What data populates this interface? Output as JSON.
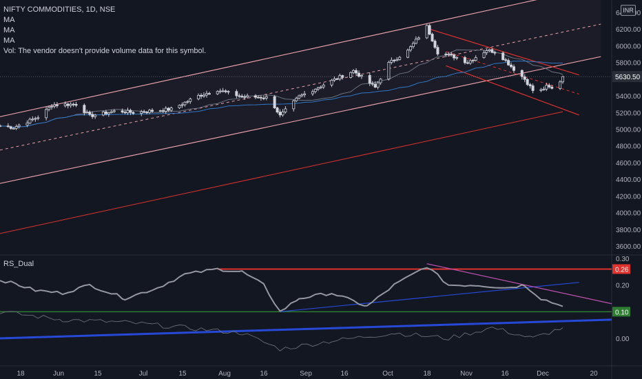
{
  "header": {
    "symbol": "NIFTY COMMODITIES, 1D, NSE",
    "indicators": [
      "MA",
      "MA",
      "MA"
    ],
    "volume_note": "Vol: The vendor doesn't provide volume data for this symbol.",
    "currency": "INR"
  },
  "rs_panel": {
    "title": "RS_Dual"
  },
  "colors": {
    "background": "#131722",
    "up": "#d1d4dc",
    "down": "#d1d4dc",
    "channel": "#e8a0a8",
    "red_line": "#e0322e",
    "ma_blue": "#2f78c8",
    "ma_gray": "#6b7280",
    "rs_line": "#9598a1",
    "rs_blue": "#2749d8",
    "rs_red_level": "#e0322e",
    "rs_green_level": "#2e7d32",
    "price_tag": "#2a2e39",
    "rs_tag_red": "#e0322e",
    "rs_tag_green": "#2e7d32"
  },
  "chart_data": [
    {
      "type": "candlestick",
      "title": "NIFTY COMMODITIES, 1D, NSE",
      "x_ticks": [
        "18",
        "Jun",
        "15",
        "Jul",
        "15",
        "Aug",
        "16",
        "Sep",
        "16",
        "Oct",
        "18",
        "Nov",
        "16",
        "Dec",
        "20"
      ],
      "y_ticks": [
        3600,
        3800,
        4000,
        4200,
        4400,
        4600,
        4800,
        5000,
        5200,
        5400,
        5600,
        5800,
        6000,
        6200,
        6400
      ],
      "y_tick_labels": [
        "3600.00",
        "3800.00",
        "4000.00",
        "4200.00",
        "4400.00",
        "4600.00",
        "4800.00",
        "5000.00",
        "5200.00",
        "5400.00",
        "5600.00",
        "5800.00",
        "6000.00",
        "6200.00",
        "6400.00"
      ],
      "ylim": [
        3500,
        6700
      ],
      "last_price": 5630.5,
      "last_price_label": "5630.50",
      "ohlc_anchors": [
        {
          "date": "May 13",
          "close": 5040
        },
        {
          "date": "May 18",
          "close": 5020
        },
        {
          "date": "May 28",
          "close": 5160
        },
        {
          "date": "Jun 01",
          "close": 5290
        },
        {
          "date": "Jun 10",
          "close": 5300
        },
        {
          "date": "Jun 15",
          "close": 5160
        },
        {
          "date": "Jun 25",
          "close": 5220
        },
        {
          "date": "Jul 01",
          "close": 5200
        },
        {
          "date": "Jul 15",
          "close": 5240
        },
        {
          "date": "Jul 25",
          "close": 5400
        },
        {
          "date": "Aug 01",
          "close": 5470
        },
        {
          "date": "Aug 10",
          "close": 5390
        },
        {
          "date": "Aug 20",
          "close": 5380
        },
        {
          "date": "Aug 24",
          "close": 5160
        },
        {
          "date": "Aug 31",
          "close": 5390
        },
        {
          "date": "Sep 10",
          "close": 5550
        },
        {
          "date": "Sep 20",
          "close": 5700
        },
        {
          "date": "Sep 28",
          "close": 5500
        },
        {
          "date": "Oct 03",
          "close": 5790
        },
        {
          "date": "Oct 10",
          "close": 5940
        },
        {
          "date": "Oct 17",
          "close": 6230
        },
        {
          "date": "Oct 21",
          "close": 5920
        },
        {
          "date": "Oct 28",
          "close": 5860
        },
        {
          "date": "Nov 01",
          "close": 5800
        },
        {
          "date": "Nov 08",
          "close": 5950
        },
        {
          "date": "Nov 12",
          "close": 5920
        },
        {
          "date": "Nov 18",
          "close": 5720
        },
        {
          "date": "Nov 22",
          "close": 5600
        },
        {
          "date": "Nov 26",
          "close": 5420
        },
        {
          "date": "Nov 30",
          "close": 5510
        },
        {
          "date": "Dec 03",
          "close": 5470
        },
        {
          "date": "Dec 06",
          "close": 5630
        }
      ],
      "trendlines": {
        "rising_channel_upper": [
          {
            "date": "May 13",
            "price": 5150
          },
          {
            "date": "Dec 20",
            "price": 6720
          }
        ],
        "rising_channel_mid": [
          {
            "date": "May 13",
            "price": 4750
          },
          {
            "date": "Dec 20",
            "price": 6260
          }
        ],
        "rising_channel_lower": [
          {
            "date": "May 13",
            "price": 4350
          },
          {
            "date": "Dec 20",
            "price": 5870
          }
        ],
        "long_red_trend": [
          {
            "date": "May 13",
            "price": 3750
          },
          {
            "date": "Dec 06",
            "price": 5210
          }
        ],
        "falling_channel_upper": [
          {
            "date": "Oct 17",
            "price": 6210
          },
          {
            "date": "Dec 12",
            "price": 5650
          }
        ],
        "falling_channel_mid": [
          {
            "date": "Oct 24",
            "price": 5930
          },
          {
            "date": "Dec 12",
            "price": 5420
          }
        ],
        "falling_channel_lower": [
          {
            "date": "Oct 24",
            "price": 5760
          },
          {
            "date": "Dec 12",
            "price": 5170
          }
        ]
      }
    },
    {
      "type": "line",
      "title": "RS_Dual",
      "y_ticks": [
        0.0,
        0.1,
        0.2,
        0.3
      ],
      "y_tick_labels": [
        "0.00",
        "0.10",
        "0.20",
        "0.30"
      ],
      "ylim": [
        -0.1,
        0.32
      ],
      "levels": [
        {
          "value": 0.26,
          "label": "0.26"
        },
        {
          "value": 0.1,
          "label": "0.10"
        }
      ],
      "series": [
        {
          "name": "",
          "points": [
            {
              "date": "May 13",
              "value": 0.22
            },
            {
              "date": "May 20",
              "value": 0.2
            },
            {
              "date": "May 26",
              "value": 0.18
            },
            {
              "date": "Jun 05",
              "value": 0.17
            },
            {
              "date": "Jun 15",
              "value": 0.2
            },
            {
              "date": "Jun 28",
              "value": 0.15
            },
            {
              "date": "Jul 10",
              "value": 0.19
            },
            {
              "date": "Jul 20",
              "value": 0.24
            },
            {
              "date": "Aug 01",
              "value": 0.26
            },
            {
              "date": "Aug 10",
              "value": 0.25
            },
            {
              "date": "Aug 18",
              "value": 0.2
            },
            {
              "date": "Aug 24",
              "value": 0.1
            },
            {
              "date": "Aug 31",
              "value": 0.15
            },
            {
              "date": "Sep 12",
              "value": 0.17
            },
            {
              "date": "Sep 25",
              "value": 0.12
            },
            {
              "date": "Oct 05",
              "value": 0.2
            },
            {
              "date": "Oct 17",
              "value": 0.27
            },
            {
              "date": "Oct 25",
              "value": 0.2
            },
            {
              "date": "Nov 05",
              "value": 0.2
            },
            {
              "date": "Nov 15",
              "value": 0.19
            },
            {
              "date": "Nov 22",
              "value": 0.2
            },
            {
              "date": "Nov 28",
              "value": 0.15
            },
            {
              "date": "Dec 06",
              "value": 0.12
            }
          ]
        },
        {
          "name": "",
          "points": [
            {
              "date": "May 13",
              "value": 0.1
            },
            {
              "date": "Jun 05",
              "value": 0.07
            },
            {
              "date": "Jun 28",
              "value": 0.06
            },
            {
              "date": "Jul 20",
              "value": 0.04
            },
            {
              "date": "Aug 10",
              "value": 0.02
            },
            {
              "date": "Aug 24",
              "value": -0.04
            },
            {
              "date": "Sep 12",
              "value": -0.01
            },
            {
              "date": "Oct 05",
              "value": 0.02
            },
            {
              "date": "Oct 25",
              "value": 0.0
            },
            {
              "date": "Nov 10",
              "value": 0.04
            },
            {
              "date": "Nov 25",
              "value": 0.0
            },
            {
              "date": "Dec 06",
              "value": 0.04
            }
          ]
        }
      ],
      "trendlines": {
        "blue_support": [
          {
            "date": "Aug 24",
            "value": 0.1
          },
          {
            "date": "Dec 12",
            "value": 0.21
          }
        ],
        "long_blue": [
          {
            "date": "May 13",
            "value": 0.0
          },
          {
            "date": "Dec 24",
            "value": 0.07
          }
        ],
        "magenta_resistance": [
          {
            "date": "Oct 17",
            "value": 0.28
          },
          {
            "date": "Dec 24",
            "value": 0.13
          }
        ]
      }
    }
  ]
}
